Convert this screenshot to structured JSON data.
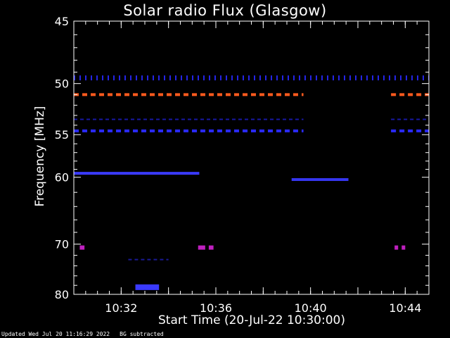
{
  "chart_data": {
    "type": "heatmap",
    "title": "Solar radio Flux (Glasgow)",
    "xlabel": "Start Time (20-Jul-22 10:30:00)",
    "ylabel": "Frequency [MHz]",
    "yscale": "reciprocal",
    "ylim": [
      80,
      45
    ],
    "xlim_minutes": [
      10.5,
      10.75
    ],
    "xlim": [
      "10:30:00",
      "10:45:00"
    ],
    "yticks": [
      45,
      50,
      55,
      60,
      70,
      80
    ],
    "yticks_minor": [
      46,
      47,
      48,
      49,
      51,
      52,
      53,
      54,
      56,
      57,
      58,
      59,
      62,
      64,
      66,
      68,
      72,
      74,
      76,
      78
    ],
    "xticks": [
      "10:32",
      "10:36",
      "10:40",
      "10:44"
    ],
    "xticks_minutes": [
      32,
      36,
      40,
      44
    ],
    "colormap": "blue-white-red",
    "background": "#000000",
    "features": [
      {
        "label": "interference",
        "freq": 49.5,
        "start": 30.0,
        "end": 45.0,
        "style": "ticks",
        "color": "#2a2aff"
      },
      {
        "label": "interference",
        "freq": 51.0,
        "start": 30.0,
        "end": 39.7,
        "style": "dashes",
        "color": "#ff5a1e"
      },
      {
        "label": "interference",
        "freq": 51.0,
        "start": 43.4,
        "end": 45.0,
        "style": "dashes",
        "color": "#ff5a1e"
      },
      {
        "label": "interference",
        "freq": 53.4,
        "start": 30.0,
        "end": 39.7,
        "style": "fine-dashes",
        "color": "#1e1ecc"
      },
      {
        "label": "interference",
        "freq": 53.4,
        "start": 43.4,
        "end": 45.0,
        "style": "fine-dashes",
        "color": "#1e1ecc"
      },
      {
        "label": "interference",
        "freq": 54.6,
        "start": 30.0,
        "end": 39.7,
        "style": "dashes",
        "color": "#2a2aff"
      },
      {
        "label": "interference",
        "freq": 54.6,
        "start": 43.4,
        "end": 45.0,
        "style": "dashes",
        "color": "#2a2aff"
      },
      {
        "label": "band",
        "freq": 59.5,
        "start": 30.0,
        "end": 35.3,
        "style": "solid",
        "color": "#3a3aff"
      },
      {
        "label": "band",
        "freq": 60.3,
        "start": 39.2,
        "end": 41.6,
        "style": "solid",
        "color": "#3535ee"
      },
      {
        "label": "spot",
        "freq": 70.6,
        "start": 30.25,
        "end": 30.45,
        "style": "solid",
        "color": "#c020c0"
      },
      {
        "label": "spot",
        "freq": 70.6,
        "start": 35.25,
        "end": 35.55,
        "style": "solid",
        "color": "#c020c0"
      },
      {
        "label": "spot",
        "freq": 70.6,
        "start": 35.7,
        "end": 35.9,
        "style": "solid",
        "color": "#c020c0"
      },
      {
        "label": "spot",
        "freq": 70.6,
        "start": 43.55,
        "end": 43.7,
        "style": "solid",
        "color": "#c020c0"
      },
      {
        "label": "spot",
        "freq": 70.6,
        "start": 43.85,
        "end": 44.0,
        "style": "solid",
        "color": "#c020c0"
      },
      {
        "label": "band",
        "freq": 72.8,
        "start": 32.3,
        "end": 34.0,
        "style": "fine-dashes",
        "color": "#2020bb"
      },
      {
        "label": "burst",
        "freq": 78.4,
        "start": 32.6,
        "end": 33.6,
        "style": "solid",
        "color": "#3a3aff"
      }
    ]
  },
  "footer": {
    "updated": "Updated Wed Jul 20 11:16:29 2022",
    "mode": "BG subtracted"
  }
}
